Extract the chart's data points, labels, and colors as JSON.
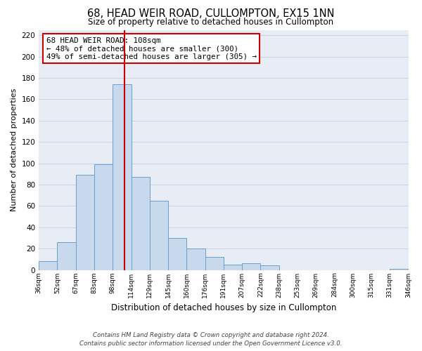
{
  "title": "68, HEAD WEIR ROAD, CULLOMPTON, EX15 1NN",
  "subtitle": "Size of property relative to detached houses in Cullompton",
  "xlabel": "Distribution of detached houses by size in Cullompton",
  "ylabel": "Number of detached properties",
  "bar_color": "#c8d9ee",
  "bar_edge_color": "#6aa0cc",
  "bin_labels": [
    "36sqm",
    "52sqm",
    "67sqm",
    "83sqm",
    "98sqm",
    "114sqm",
    "129sqm",
    "145sqm",
    "160sqm",
    "176sqm",
    "191sqm",
    "207sqm",
    "222sqm",
    "238sqm",
    "253sqm",
    "269sqm",
    "284sqm",
    "300sqm",
    "315sqm",
    "331sqm",
    "346sqm"
  ],
  "bar_heights": [
    8,
    26,
    89,
    99,
    174,
    87,
    65,
    30,
    20,
    12,
    5,
    6,
    4,
    0,
    0,
    0,
    0,
    0,
    0,
    1
  ],
  "ylim": [
    0,
    225
  ],
  "yticks": [
    0,
    20,
    40,
    60,
    80,
    100,
    120,
    140,
    160,
    180,
    200,
    220
  ],
  "annotation_title": "68 HEAD WEIR ROAD: 108sqm",
  "annotation_line1": "← 48% of detached houses are smaller (300)",
  "annotation_line2": "49% of semi-detached houses are larger (305) →",
  "annotation_box_color": "#ffffff",
  "annotation_box_edge_color": "#cc0000",
  "property_line_color": "#cc0000",
  "grid_color": "#c8d4e8",
  "background_color": "#e8edf5",
  "footer1": "Contains HM Land Registry data © Crown copyright and database right 2024.",
  "footer2": "Contains public sector information licensed under the Open Government Licence v3.0."
}
